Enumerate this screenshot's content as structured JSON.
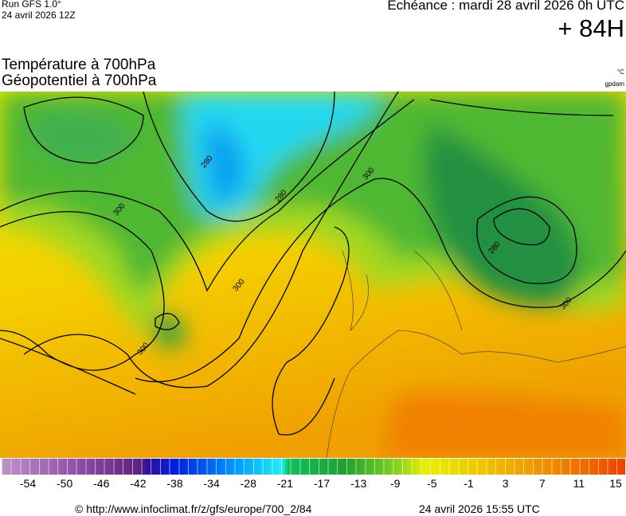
{
  "header": {
    "run": "Run GFS 1.0°",
    "run_date": "24 avril 2026 12Z",
    "echeance": "Echéance : mardi 28 avril 2026 0h UTC",
    "lead": "+ 84H",
    "title_temp": "Température à 700hPa",
    "title_geo": "Géopotentiel à 700hPa",
    "unit_temp": "°C",
    "unit_geo": "gpdam"
  },
  "map": {
    "contour_labels": [
      280,
      280,
      300,
      300,
      300,
      300,
      280,
      300
    ]
  },
  "legend": {
    "labels": [
      -54,
      -50,
      -46,
      -42,
      -38,
      -34,
      -28,
      -21,
      -17,
      -13,
      -9,
      -5,
      -1,
      3,
      7,
      11,
      15
    ]
  },
  "footer": {
    "url": "© http://www.infoclimat.fr/z/gfs/europe/700_2/84",
    "timestamp": "24 avril 2026 15:55 UTC"
  }
}
